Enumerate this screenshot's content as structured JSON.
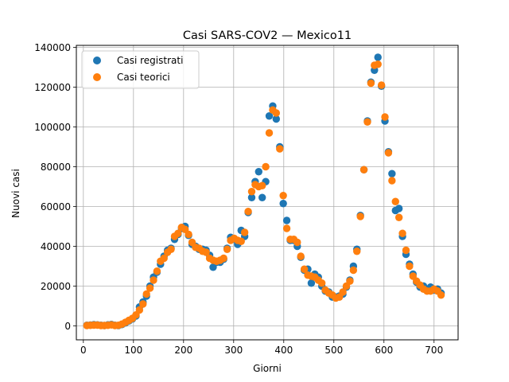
{
  "chart_data": {
    "type": "scatter",
    "title": "Casi SARS-COV2 — Mexico11",
    "xlabel": "Giorni",
    "ylabel": "Nuovi casi",
    "xlim": [
      -14,
      748
    ],
    "ylim": [
      -7000,
      141000
    ],
    "x_ticks": [
      0,
      100,
      200,
      300,
      400,
      500,
      600,
      700
    ],
    "y_ticks": [
      0,
      20000,
      40000,
      60000,
      80000,
      100000,
      120000,
      140000
    ],
    "grid": true,
    "legend_position": "top-left",
    "series": [
      {
        "name": "Casi registrati",
        "color": "#1f77b4",
        "points": [
          [
            7,
            300
          ],
          [
            14,
            400
          ],
          [
            21,
            600
          ],
          [
            28,
            500
          ],
          [
            35,
            300
          ],
          [
            42,
            200
          ],
          [
            49,
            500
          ],
          [
            56,
            700
          ],
          [
            63,
            300
          ],
          [
            70,
            200
          ],
          [
            77,
            700
          ],
          [
            84,
            1500
          ],
          [
            91,
            2500
          ],
          [
            98,
            3500
          ],
          [
            105,
            5000
          ],
          [
            112,
            9500
          ],
          [
            119,
            12000
          ],
          [
            126,
            15000
          ],
          [
            133,
            20000
          ],
          [
            140,
            24500
          ],
          [
            147,
            27000
          ],
          [
            154,
            31000
          ],
          [
            161,
            35000
          ],
          [
            168,
            38000
          ],
          [
            175,
            39000
          ],
          [
            182,
            43500
          ],
          [
            189,
            46000
          ],
          [
            196,
            49000
          ],
          [
            203,
            50000
          ],
          [
            210,
            45500
          ],
          [
            217,
            41000
          ],
          [
            224,
            40000
          ],
          [
            231,
            38500
          ],
          [
            238,
            38500
          ],
          [
            245,
            38000
          ],
          [
            252,
            35500
          ],
          [
            259,
            29500
          ],
          [
            266,
            32000
          ],
          [
            273,
            32000
          ],
          [
            280,
            33500
          ],
          [
            287,
            39000
          ],
          [
            294,
            44500
          ],
          [
            301,
            43500
          ],
          [
            308,
            41000
          ],
          [
            315,
            48000
          ],
          [
            322,
            45000
          ],
          [
            329,
            57000
          ],
          [
            336,
            64500
          ],
          [
            343,
            72500
          ],
          [
            350,
            77500
          ],
          [
            357,
            64500
          ],
          [
            364,
            72500
          ],
          [
            371,
            105500
          ],
          [
            378,
            110500
          ],
          [
            385,
            104000
          ],
          [
            392,
            90000
          ],
          [
            399,
            61500
          ],
          [
            406,
            53000
          ],
          [
            413,
            43000
          ],
          [
            420,
            43000
          ],
          [
            427,
            40000
          ],
          [
            434,
            34500
          ],
          [
            441,
            28000
          ],
          [
            448,
            28500
          ],
          [
            455,
            21500
          ],
          [
            462,
            26000
          ],
          [
            469,
            24500
          ],
          [
            476,
            20000
          ],
          [
            483,
            17500
          ],
          [
            490,
            17000
          ],
          [
            497,
            14500
          ],
          [
            504,
            14500
          ],
          [
            511,
            15000
          ],
          [
            518,
            16000
          ],
          [
            525,
            19500
          ],
          [
            532,
            23000
          ],
          [
            539,
            30000
          ],
          [
            546,
            38500
          ],
          [
            553,
            55500
          ],
          [
            560,
            78500
          ],
          [
            567,
            103000
          ],
          [
            574,
            122500
          ],
          [
            581,
            128500
          ],
          [
            588,
            135000
          ],
          [
            595,
            120500
          ],
          [
            602,
            103000
          ],
          [
            609,
            87500
          ],
          [
            616,
            76500
          ],
          [
            623,
            58000
          ],
          [
            630,
            59000
          ],
          [
            637,
            45000
          ],
          [
            644,
            36000
          ],
          [
            651,
            31000
          ],
          [
            658,
            26000
          ],
          [
            665,
            22000
          ],
          [
            672,
            19500
          ],
          [
            679,
            20000
          ],
          [
            686,
            18500
          ],
          [
            693,
            19500
          ],
          [
            700,
            18000
          ],
          [
            707,
            18500
          ],
          [
            714,
            16500
          ]
        ]
      },
      {
        "name": "Casi teorici",
        "color": "#ff7f0e",
        "points": [
          [
            7,
            200
          ],
          [
            14,
            300
          ],
          [
            21,
            400
          ],
          [
            28,
            400
          ],
          [
            35,
            200
          ],
          [
            42,
            200
          ],
          [
            49,
            300
          ],
          [
            56,
            500
          ],
          [
            63,
            200
          ],
          [
            70,
            300
          ],
          [
            77,
            900
          ],
          [
            84,
            1800
          ],
          [
            91,
            2800
          ],
          [
            98,
            3800
          ],
          [
            105,
            5500
          ],
          [
            112,
            8000
          ],
          [
            119,
            11000
          ],
          [
            126,
            16000
          ],
          [
            133,
            19000
          ],
          [
            140,
            23000
          ],
          [
            147,
            27500
          ],
          [
            154,
            32500
          ],
          [
            161,
            34000
          ],
          [
            168,
            37000
          ],
          [
            175,
            38500
          ],
          [
            182,
            45000
          ],
          [
            189,
            46500
          ],
          [
            196,
            49500
          ],
          [
            203,
            48500
          ],
          [
            210,
            46000
          ],
          [
            217,
            42000
          ],
          [
            224,
            39500
          ],
          [
            231,
            39000
          ],
          [
            238,
            37500
          ],
          [
            245,
            37000
          ],
          [
            252,
            34000
          ],
          [
            259,
            33000
          ],
          [
            266,
            32500
          ],
          [
            273,
            33000
          ],
          [
            280,
            34000
          ],
          [
            287,
            38500
          ],
          [
            294,
            43000
          ],
          [
            301,
            44000
          ],
          [
            308,
            43000
          ],
          [
            315,
            42500
          ],
          [
            322,
            47000
          ],
          [
            329,
            57500
          ],
          [
            336,
            67500
          ],
          [
            343,
            71000
          ],
          [
            350,
            70000
          ],
          [
            357,
            70500
          ],
          [
            364,
            80000
          ],
          [
            371,
            97000
          ],
          [
            378,
            108500
          ],
          [
            385,
            107000
          ],
          [
            392,
            89000
          ],
          [
            399,
            65500
          ],
          [
            406,
            49000
          ],
          [
            413,
            43500
          ],
          [
            420,
            43500
          ],
          [
            427,
            42000
          ],
          [
            434,
            35000
          ],
          [
            441,
            28500
          ],
          [
            448,
            25500
          ],
          [
            455,
            25000
          ],
          [
            462,
            24500
          ],
          [
            469,
            23000
          ],
          [
            476,
            21500
          ],
          [
            483,
            18000
          ],
          [
            490,
            16500
          ],
          [
            497,
            15500
          ],
          [
            504,
            14000
          ],
          [
            511,
            14500
          ],
          [
            518,
            17000
          ],
          [
            525,
            20000
          ],
          [
            532,
            22500
          ],
          [
            539,
            28000
          ],
          [
            546,
            37500
          ],
          [
            553,
            55000
          ],
          [
            560,
            78500
          ],
          [
            567,
            102500
          ],
          [
            574,
            122000
          ],
          [
            581,
            131000
          ],
          [
            588,
            131500
          ],
          [
            595,
            121000
          ],
          [
            602,
            105000
          ],
          [
            609,
            87000
          ],
          [
            616,
            73000
          ],
          [
            623,
            62500
          ],
          [
            630,
            54500
          ],
          [
            637,
            46500
          ],
          [
            644,
            38000
          ],
          [
            651,
            30000
          ],
          [
            658,
            25000
          ],
          [
            665,
            22500
          ],
          [
            672,
            20500
          ],
          [
            679,
            18500
          ],
          [
            686,
            17500
          ],
          [
            693,
            17500
          ],
          [
            700,
            18500
          ],
          [
            707,
            17500
          ],
          [
            714,
            15500
          ]
        ]
      }
    ]
  }
}
